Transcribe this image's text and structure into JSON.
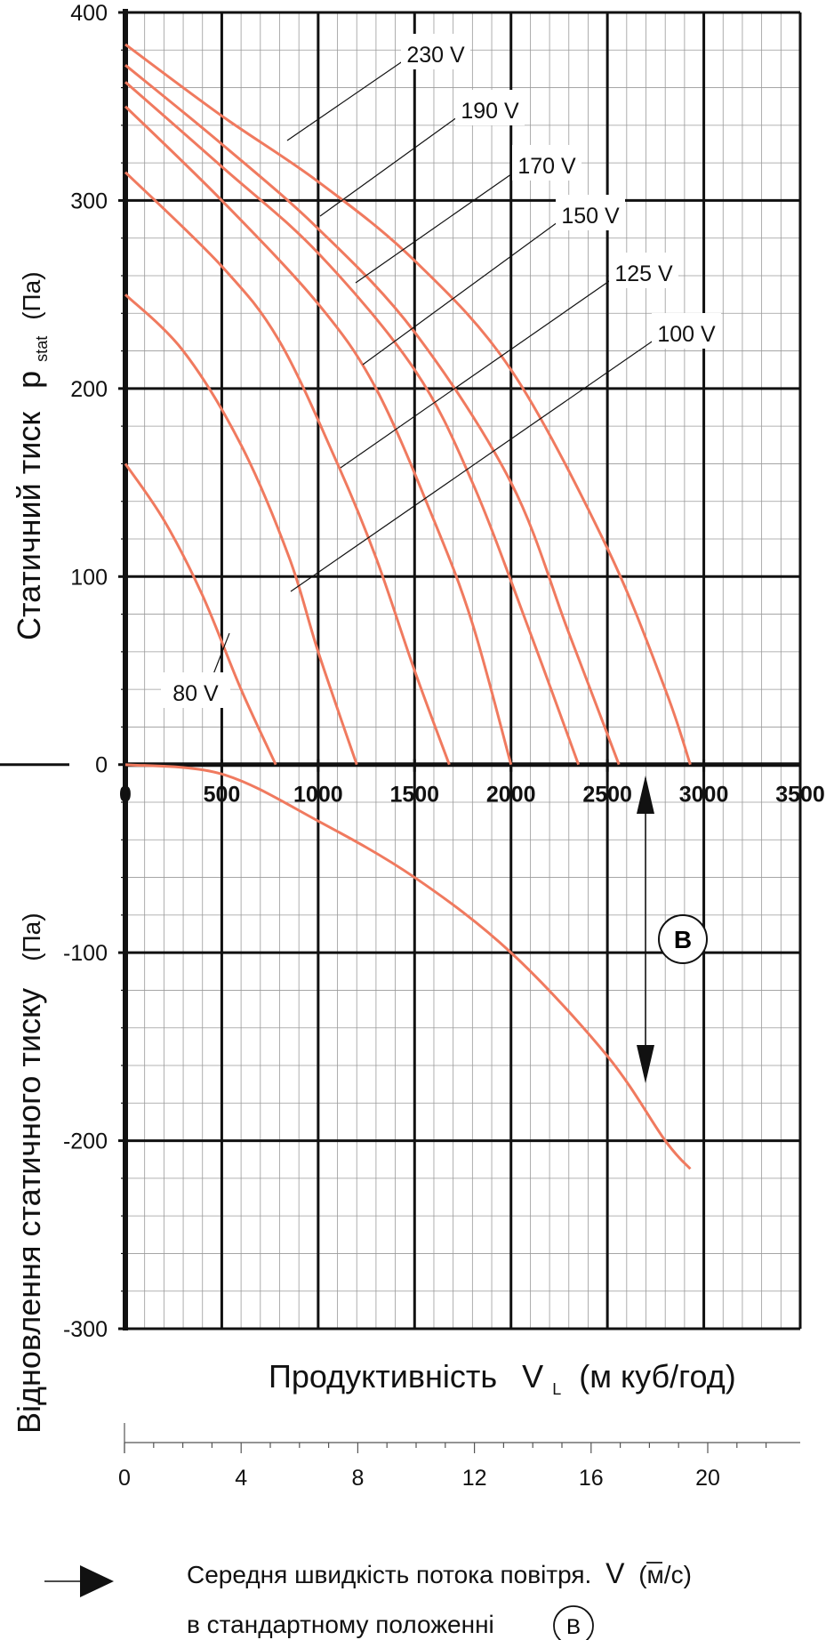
{
  "chart_data": {
    "type": "line",
    "xlabel": "Продуктивність",
    "xlabel_symbol": "V",
    "xlabel_sub": "L",
    "xlabel_unit": "(м куб/год)",
    "ylabel_top": "Статичний тиск",
    "ylabel_symbol": "p",
    "ylabel_sub": "stat",
    "ylabel_unit": "(Па)",
    "ylabel_bottom": "Відновлення статичного тиску",
    "ylabel_bottom_unit": "(Па)",
    "xlim": [
      0,
      3500
    ],
    "ylim": [
      -300,
      400
    ],
    "x_ticks": [
      "0",
      "500",
      "1000",
      "1500",
      "2000",
      "2500",
      "3000",
      "3500"
    ],
    "y_ticks": [
      "400",
      "300",
      "200",
      "100",
      "0",
      "-100",
      "-200",
      "-300"
    ],
    "grid": true,
    "series": [
      {
        "name": "230 V",
        "points": [
          [
            0,
            383
          ],
          [
            500,
            345
          ],
          [
            1000,
            310
          ],
          [
            1500,
            268
          ],
          [
            2000,
            210
          ],
          [
            2500,
            115
          ],
          [
            2800,
            40
          ],
          [
            2930,
            0
          ]
        ]
      },
      {
        "name": "190 V",
        "points": [
          [
            0,
            372
          ],
          [
            500,
            330
          ],
          [
            1000,
            285
          ],
          [
            1500,
            230
          ],
          [
            2000,
            150
          ],
          [
            2300,
            70
          ],
          [
            2560,
            0
          ]
        ]
      },
      {
        "name": "170 V",
        "points": [
          [
            0,
            363
          ],
          [
            500,
            318
          ],
          [
            1000,
            272
          ],
          [
            1500,
            210
          ],
          [
            1800,
            150
          ],
          [
            2100,
            70
          ],
          [
            2350,
            0
          ]
        ]
      },
      {
        "name": "150 V",
        "points": [
          [
            0,
            350
          ],
          [
            500,
            300
          ],
          [
            1000,
            245
          ],
          [
            1300,
            200
          ],
          [
            1600,
            130
          ],
          [
            1800,
            75
          ],
          [
            2000,
            0
          ]
        ]
      },
      {
        "name": "125 V",
        "points": [
          [
            0,
            315
          ],
          [
            500,
            265
          ],
          [
            800,
            225
          ],
          [
            1100,
            160
          ],
          [
            1300,
            110
          ],
          [
            1500,
            50
          ],
          [
            1680,
            0
          ]
        ]
      },
      {
        "name": "100 V",
        "points": [
          [
            0,
            250
          ],
          [
            300,
            220
          ],
          [
            600,
            170
          ],
          [
            850,
            110
          ],
          [
            1000,
            60
          ],
          [
            1200,
            0
          ]
        ]
      },
      {
        "name": "80 V",
        "points": [
          [
            0,
            160
          ],
          [
            200,
            130
          ],
          [
            400,
            90
          ],
          [
            600,
            40
          ],
          [
            780,
            0
          ]
        ]
      },
      {
        "name": "",
        "points": [
          [
            0,
            0
          ],
          [
            500,
            -5
          ],
          [
            1000,
            -30
          ],
          [
            1500,
            -60
          ],
          [
            2000,
            -100
          ],
          [
            2500,
            -155
          ],
          [
            2800,
            -200
          ],
          [
            2930,
            -215
          ]
        ]
      }
    ],
    "series_color": "#f07a5f",
    "annotations": [
      {
        "label": "B",
        "text": "B"
      }
    ],
    "velocity_axis": {
      "ticks": [
        "0",
        "4",
        "8",
        "12",
        "16",
        "20"
      ]
    },
    "legend_line1": "Середня швидкість потока повітря.",
    "legend_symbol": "V",
    "legend_unit": "(м/с)",
    "legend_line2": "в стандартному положенні",
    "legend_marker": "B"
  }
}
